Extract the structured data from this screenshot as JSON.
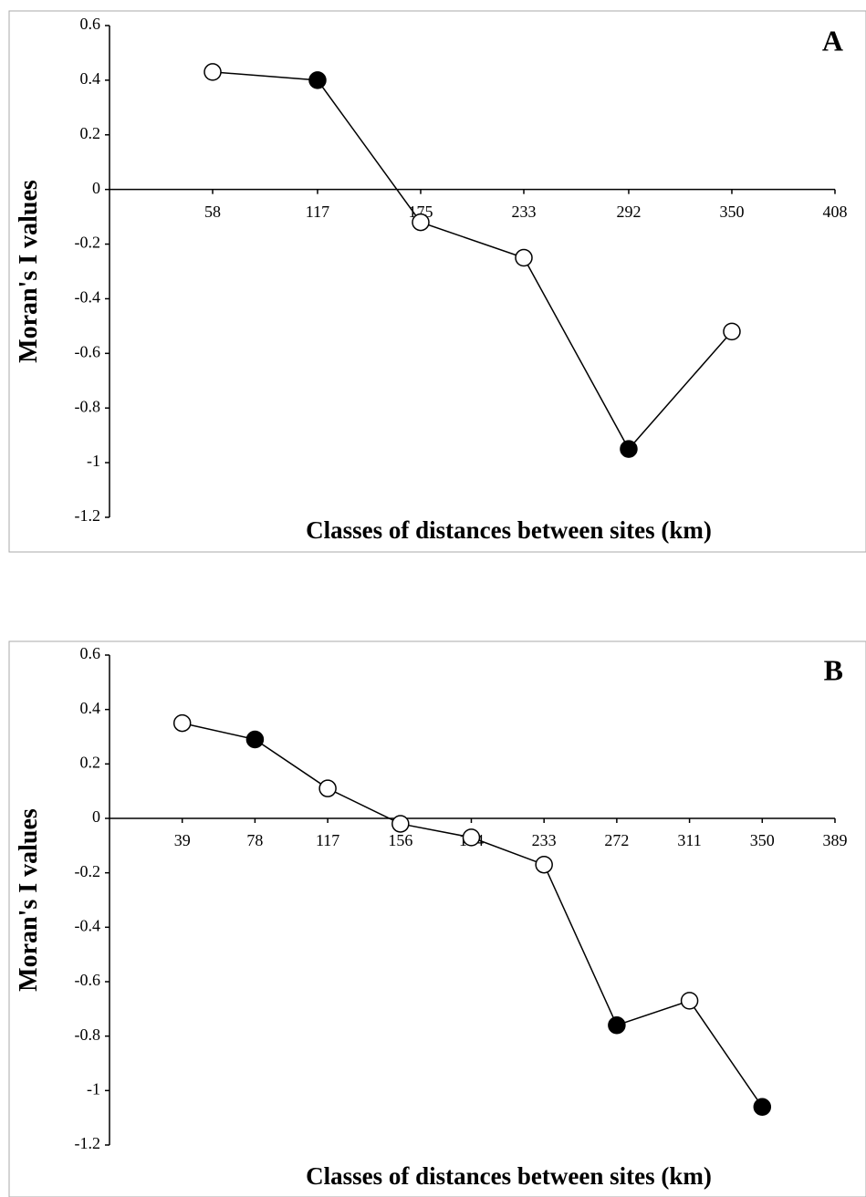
{
  "chart_data": [
    {
      "type": "line",
      "title": "A",
      "xlabel": "Classes of distances between sites (km)",
      "ylabel": "Moran's I values",
      "x": [
        58,
        117,
        175,
        233,
        292,
        350
      ],
      "series": [
        {
          "color": "#000000",
          "values": [
            0.43,
            0.4,
            -0.12,
            -0.25,
            -0.95,
            -0.52
          ],
          "marker_colors": [
            "#ffffff",
            "#000000",
            "#ffffff",
            "#ffffff",
            "#000000",
            "#ffffff"
          ]
        }
      ],
      "xlim": [
        0,
        408
      ],
      "xticks": [
        58,
        117,
        175,
        233,
        292,
        350,
        408
      ],
      "ylim": [
        -1.2,
        0.6
      ],
      "yticks": [
        0.6,
        0.4,
        0.2,
        0,
        -0.2,
        -0.4,
        -0.6,
        -0.8,
        -1,
        -1.2
      ]
    },
    {
      "type": "line",
      "title": "B",
      "xlabel": "Classes of distances between sites (km)",
      "ylabel": "Moran's I values",
      "x": [
        39,
        78,
        117,
        156,
        194,
        233,
        272,
        311,
        350
      ],
      "series": [
        {
          "color": "#000000",
          "values": [
            0.35,
            0.29,
            0.11,
            -0.02,
            -0.07,
            -0.17,
            -0.76,
            -0.67,
            -1.06
          ],
          "marker_colors": [
            "#ffffff",
            "#000000",
            "#ffffff",
            "#ffffff",
            "#ffffff",
            "#ffffff",
            "#000000",
            "#ffffff",
            "#000000"
          ]
        }
      ],
      "xlim": [
        0,
        389
      ],
      "xticks": [
        39,
        78,
        117,
        156,
        194,
        233,
        272,
        311,
        350,
        389
      ],
      "ylim": [
        -1.2,
        0.6
      ],
      "yticks": [
        0.6,
        0.4,
        0.2,
        0,
        -0.2,
        -0.4,
        -0.6,
        -0.8,
        -1,
        -1.2
      ]
    }
  ]
}
